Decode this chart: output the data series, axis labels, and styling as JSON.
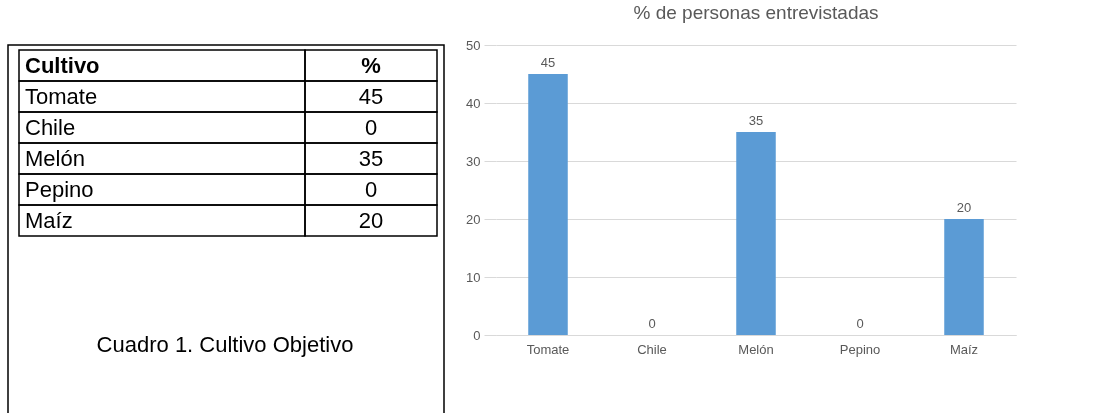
{
  "chart_data": [
    {
      "type": "other",
      "xlabel": "Cultivo",
      "ylabel": "%",
      "categories": [
        "Tomate",
        "Chile",
        "Melón",
        "Pepino",
        "Maíz"
      ],
      "values": [
        45,
        0,
        35,
        0,
        20
      ],
      "data_labels": true,
      "annotations": [
        "Cuadro 1. Cultivo Objetivo"
      ]
    },
    {
      "type": "bar",
      "title": "% de personas entrevistadas",
      "categories": [
        "Tomate",
        "Chile",
        "Melón",
        "Pepino",
        "Maíz"
      ],
      "values": [
        45,
        0,
        35,
        0,
        20
      ],
      "color": "#5b9bd5",
      "ylim": [
        0,
        50
      ],
      "yticks": [
        0,
        10,
        20,
        30,
        40,
        50
      ],
      "grid": "y",
      "data_labels": true
    }
  ]
}
